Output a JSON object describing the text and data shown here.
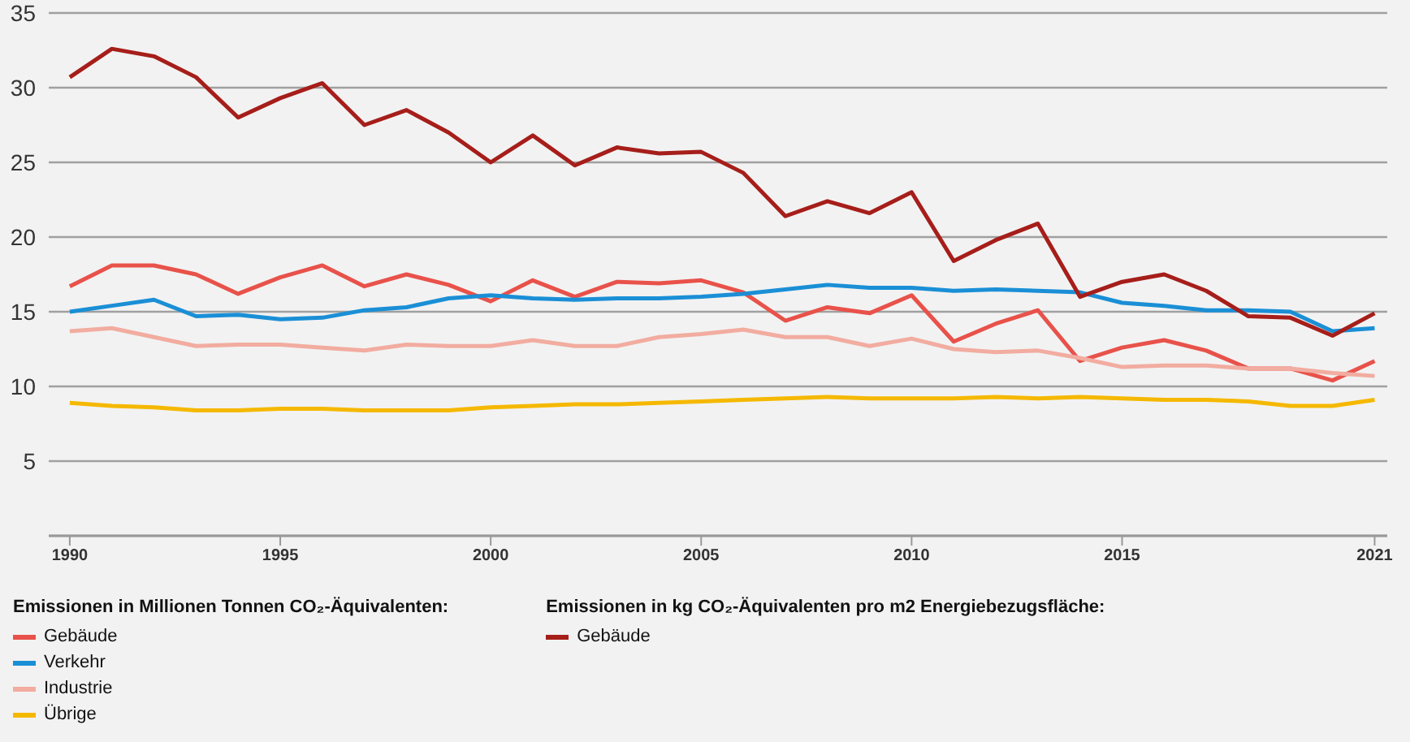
{
  "chart_data": {
    "type": "line",
    "x": [
      1990,
      1991,
      1992,
      1993,
      1994,
      1995,
      1996,
      1997,
      1998,
      1999,
      2000,
      2001,
      2002,
      2003,
      2004,
      2005,
      2006,
      2007,
      2008,
      2009,
      2010,
      2011,
      2012,
      2013,
      2014,
      2015,
      2016,
      2017,
      2018,
      2019,
      2020,
      2021
    ],
    "series": [
      {
        "name": "Gebäude",
        "color": "#e8524a",
        "values": [
          16.7,
          18.1,
          18.1,
          17.5,
          16.2,
          17.3,
          18.1,
          16.7,
          17.5,
          16.8,
          15.7,
          17.1,
          16.0,
          17.0,
          16.9,
          17.1,
          16.3,
          14.4,
          15.3,
          14.9,
          16.1,
          13.0,
          14.2,
          15.1,
          11.7,
          12.6,
          13.1,
          12.4,
          11.2,
          11.2,
          10.4,
          11.7
        ]
      },
      {
        "name": "Verkehr",
        "color": "#1a8fd6",
        "values": [
          15.0,
          15.4,
          15.8,
          14.7,
          14.8,
          14.5,
          14.6,
          15.1,
          15.3,
          15.9,
          16.1,
          15.9,
          15.8,
          15.9,
          15.9,
          16.0,
          16.2,
          16.5,
          16.8,
          16.6,
          16.6,
          16.4,
          16.5,
          16.4,
          16.3,
          15.6,
          15.4,
          15.1,
          15.1,
          15.0,
          13.7,
          13.9
        ]
      },
      {
        "name": "Industrie",
        "color": "#f2aca0",
        "values": [
          13.7,
          13.9,
          13.3,
          12.7,
          12.8,
          12.8,
          12.6,
          12.4,
          12.8,
          12.7,
          12.7,
          13.1,
          12.7,
          12.7,
          13.3,
          13.5,
          13.8,
          13.3,
          13.3,
          12.7,
          13.2,
          12.5,
          12.3,
          12.4,
          11.9,
          11.3,
          11.4,
          11.4,
          11.2,
          11.2,
          10.9,
          10.7
        ]
      },
      {
        "name": "Übrige",
        "color": "#f5b800",
        "values": [
          8.9,
          8.7,
          8.6,
          8.4,
          8.4,
          8.5,
          8.5,
          8.4,
          8.4,
          8.4,
          8.6,
          8.7,
          8.8,
          8.8,
          8.9,
          9.0,
          9.1,
          9.2,
          9.3,
          9.2,
          9.2,
          9.2,
          9.3,
          9.2,
          9.3,
          9.2,
          9.1,
          9.1,
          9.0,
          8.7,
          8.7,
          9.1
        ]
      },
      {
        "name": "Gebäude",
        "color": "#a61e1a",
        "values": [
          30.7,
          32.6,
          32.1,
          30.7,
          28.0,
          29.3,
          30.3,
          27.5,
          28.5,
          27.0,
          25.0,
          26.8,
          24.8,
          26.0,
          25.6,
          25.7,
          24.3,
          21.4,
          22.4,
          21.6,
          23.0,
          18.4,
          19.8,
          20.9,
          16.0,
          17.0,
          17.5,
          16.4,
          14.7,
          14.6,
          13.4,
          14.9
        ]
      }
    ],
    "xlim": [
      1989.5,
      2021.3
    ],
    "xticks": [
      1990,
      1995,
      2000,
      2005,
      2010,
      2015,
      2021
    ],
    "ylim": [
      0,
      35
    ],
    "yticks": [
      5,
      10,
      15,
      20,
      25,
      30,
      35
    ],
    "grid": "y",
    "legend": "bottom",
    "marker": "none",
    "line_style": "solid",
    "legend_title": "Emissionen in Millionen Tonnen CO₂-Äquivalenten:",
    "annotations": [
      "Emissionen in kg CO₂-Äquivalenten pro m2 Energiebezugsfläche:"
    ]
  }
}
